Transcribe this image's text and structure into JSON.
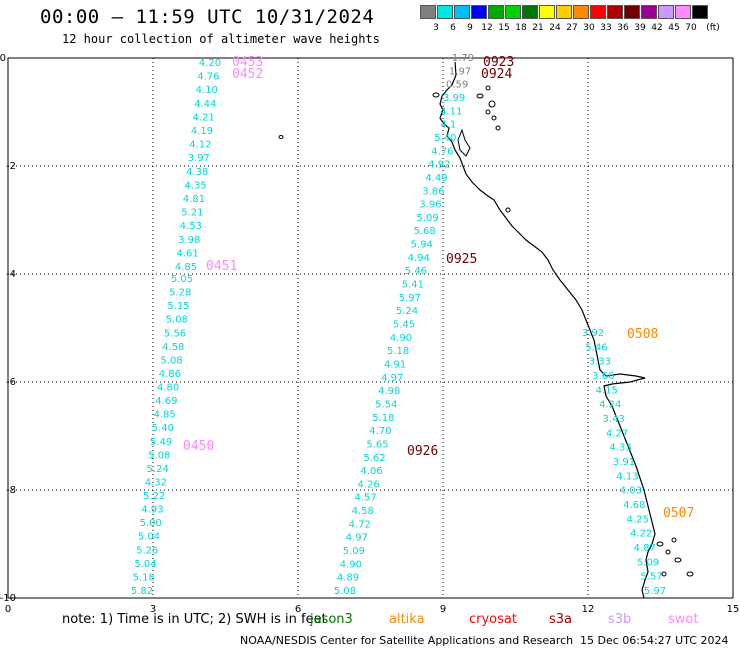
{
  "header": {
    "title": "00:00 – 11:59 UTC 10/31/2024",
    "subtitle": "12 hour collection of altimeter wave heights"
  },
  "colorbar": {
    "unit": "(ft)",
    "bins": [
      {
        "label": "3",
        "color": "#7f7f7f"
      },
      {
        "label": "6",
        "color": "#00e5e5"
      },
      {
        "label": "9",
        "color": "#00bfff"
      },
      {
        "label": "12",
        "color": "#0000ff"
      },
      {
        "label": "15",
        "color": "#00aa00"
      },
      {
        "label": "18",
        "color": "#00d200"
      },
      {
        "label": "21",
        "color": "#007700"
      },
      {
        "label": "24",
        "color": "#ffff00"
      },
      {
        "label": "27",
        "color": "#ffcc00"
      },
      {
        "label": "30",
        "color": "#ff8800"
      },
      {
        "label": "33",
        "color": "#ff0000"
      },
      {
        "label": "36",
        "color": "#aa0000"
      },
      {
        "label": "39",
        "color": "#700000"
      },
      {
        "label": "42",
        "color": "#990099"
      },
      {
        "label": "45",
        "color": "#cc99ff"
      },
      {
        "label": "70",
        "color": "#ff88ff"
      },
      {
        "label": "",
        "color": "#000000"
      }
    ]
  },
  "axes": {
    "x_ticks": [
      "0",
      "3",
      "6",
      "9",
      "12",
      "15"
    ],
    "y_ticks": [
      "0",
      "-2",
      "-4",
      "-6",
      "-8",
      "-10"
    ]
  },
  "tracks": [
    {
      "satellite": "swot",
      "color": "#00d8d8",
      "values": [
        "4.20",
        "4.76",
        "4.10",
        "4.44",
        "4.21",
        "4.19",
        "4.12",
        "3.97",
        "4.38",
        "4.35",
        "4.81",
        "5.21",
        "4.53",
        "3.98",
        "4.61",
        "4.85"
      ],
      "pass_times": [
        "0453",
        "0452",
        "0451"
      ]
    },
    {
      "satellite": "swot",
      "color": "#00d8d8",
      "values": [
        "5.05",
        "5.28",
        "5.15",
        "5.08",
        "5.56",
        "4.58",
        "5.08",
        "4.86",
        "4.80",
        "4.69",
        "4.85",
        "5.40",
        "5.49",
        "5.08",
        "5.24",
        "4.32",
        "5.22",
        "4.93",
        "5.00",
        "5.04",
        "5.26",
        "5.04",
        "5.18",
        "5.82"
      ],
      "pass_times": [
        "0450"
      ]
    },
    {
      "satellite": "s3a",
      "color": "#00d8d8",
      "values": [
        "1.79",
        "1.97",
        "0.59",
        "3.99",
        "4.11",
        "4.1",
        "5.40",
        "4.76",
        "4.92",
        "4.49",
        "3.86",
        "3.96",
        "5.09",
        "5.68",
        "5.94",
        "4.94",
        "5.46",
        "5.41",
        "5.97",
        "5.24",
        "5.45",
        "4.90",
        "5.18",
        "4.91",
        "4.97",
        "4.98",
        "5.54",
        "5.18",
        "4.70",
        "5.65",
        "5.62",
        "4.06",
        "4.26",
        "4.57",
        "4.58",
        "4.72",
        "4.97",
        "5.09",
        "4.90",
        "4.89",
        "5.08"
      ],
      "pass_times": [
        "0923",
        "0924",
        "0925",
        "0926"
      ]
    },
    {
      "satellite": "altika",
      "color": "#00d8d8",
      "values": [
        "3.92",
        "5.46",
        "3.33",
        "3.66",
        "4.15",
        "4.24",
        "3.43",
        "4.27",
        "4.33",
        "3.91",
        "4.13",
        "4.03",
        "4.68",
        "4.25",
        "4.22",
        "4.87",
        "5.09",
        "5.57",
        "5.97"
      ],
      "pass_times": [
        "0508",
        "0507"
      ]
    }
  ],
  "footer": {
    "note": "note:  1) Time is in UTC;  2) SWH is in feet",
    "legend": [
      {
        "label": "jason3",
        "color": "#007700"
      },
      {
        "label": "altika",
        "color": "#ff8800"
      },
      {
        "label": "cryosat",
        "color": "#ff0000"
      },
      {
        "label": "s3a",
        "color": "#aa0000"
      },
      {
        "label": "s3b",
        "color": "#cc99ff"
      },
      {
        "label": "swot",
        "color": "#ff88ff"
      }
    ],
    "credit": "NOAA/NESDIS Center for Satellite Applications and Research",
    "timestamp": "15 Dec 06:54:27 UTC 2024"
  }
}
